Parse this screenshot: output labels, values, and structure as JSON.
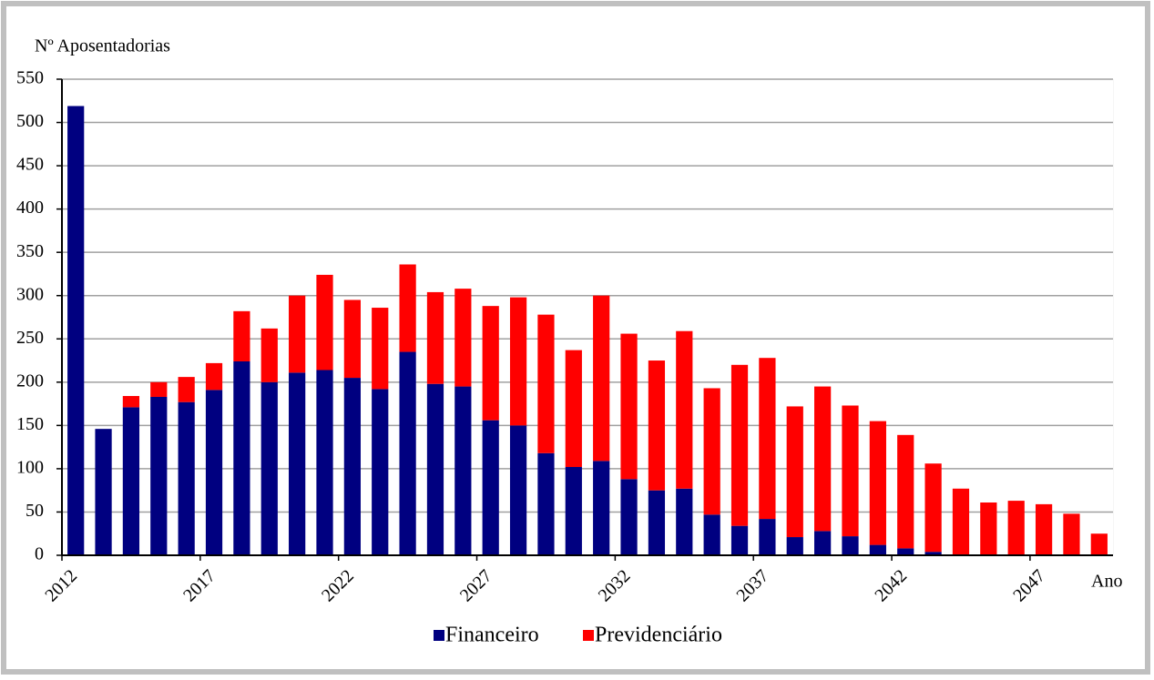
{
  "chart_data": {
    "type": "stacked_bar",
    "y_label": "Nº Aposentadorias",
    "x_label": "Ano",
    "categories": [
      "2012",
      null,
      null,
      null,
      null,
      "2017",
      null,
      null,
      null,
      null,
      "2022",
      null,
      null,
      null,
      null,
      "2027",
      null,
      null,
      null,
      null,
      "2032",
      null,
      null,
      null,
      null,
      "2037",
      null,
      null,
      null,
      null,
      "2042",
      null,
      null,
      null,
      null,
      "2047",
      null,
      null
    ],
    "series": [
      {
        "name": "Financeiro",
        "color": "#000080",
        "values": [
          519,
          146,
          171,
          183,
          177,
          191,
          224,
          200,
          211,
          214,
          205,
          192,
          235,
          198,
          195,
          156,
          150,
          118,
          102,
          109,
          88,
          75,
          77,
          47,
          34,
          42,
          21,
          28,
          22,
          12,
          8,
          4,
          0,
          0,
          0,
          0,
          0,
          0
        ]
      },
      {
        "name": "Previdenciário",
        "color": "#ff0000",
        "values": [
          0,
          0,
          13,
          17,
          29,
          31,
          58,
          62,
          89,
          110,
          90,
          94,
          101,
          106,
          113,
          132,
          148,
          160,
          135,
          191,
          168,
          150,
          182,
          146,
          186,
          186,
          151,
          167,
          151,
          143,
          131,
          102,
          77,
          61,
          63,
          59,
          48,
          25
        ]
      }
    ],
    "ylim": [
      0,
      550
    ],
    "yticks": [
      0,
      50,
      100,
      150,
      200,
      250,
      300,
      350,
      400,
      450,
      500,
      550
    ],
    "grid": true
  }
}
